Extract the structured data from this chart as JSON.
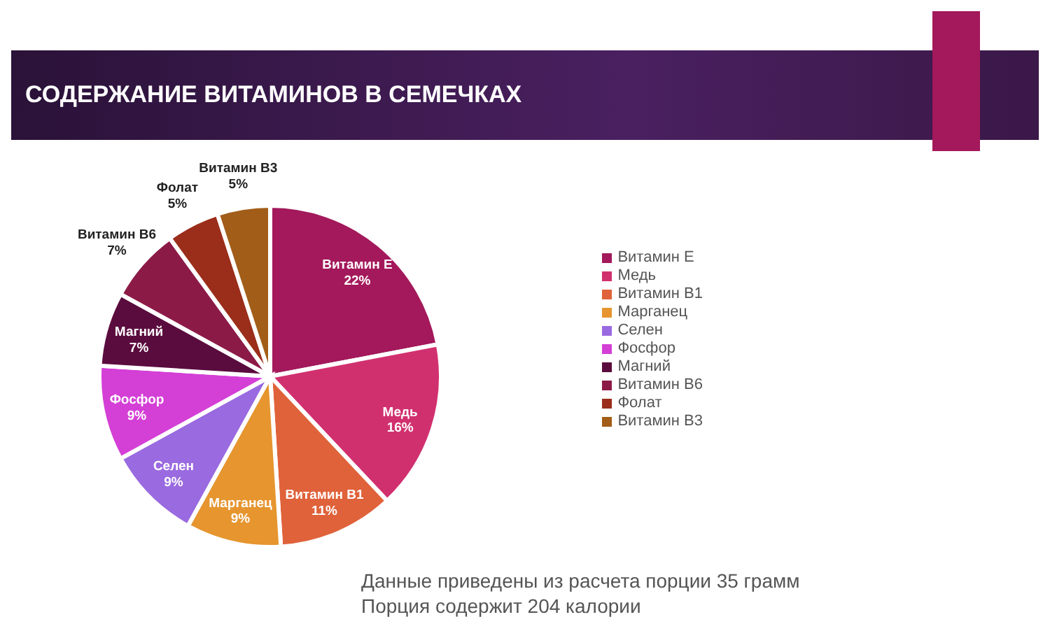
{
  "chart_data": {
    "type": "pie",
    "title": "СОДЕРЖАНИЕ ВИТАМИНОВ В СЕМЕЧКАХ",
    "categories": [
      "Витамин E",
      "Медь",
      "Витамин B1",
      "Марганец",
      "Селен",
      "Фосфор",
      "Магний",
      "Витамин B6",
      "Фолат",
      "Витамин B3"
    ],
    "values": [
      22,
      16,
      11,
      9,
      9,
      9,
      7,
      7,
      5,
      5
    ],
    "colors": [
      "#a3195b",
      "#d1306f",
      "#e0623a",
      "#e6952f",
      "#9a6ae0",
      "#d43fd6",
      "#5b0c3e",
      "#8c1a47",
      "#9a2e1a",
      "#a25d19"
    ],
    "value_labels": [
      "22%",
      "16%",
      "11%",
      "9%",
      "9%",
      "9%",
      "7%",
      "7%",
      "5%",
      "5%"
    ],
    "legend": "right",
    "annotations": [
      "Данные приведены из расчета порции 35 грамм",
      "Порция содержит 204 калории"
    ]
  }
}
